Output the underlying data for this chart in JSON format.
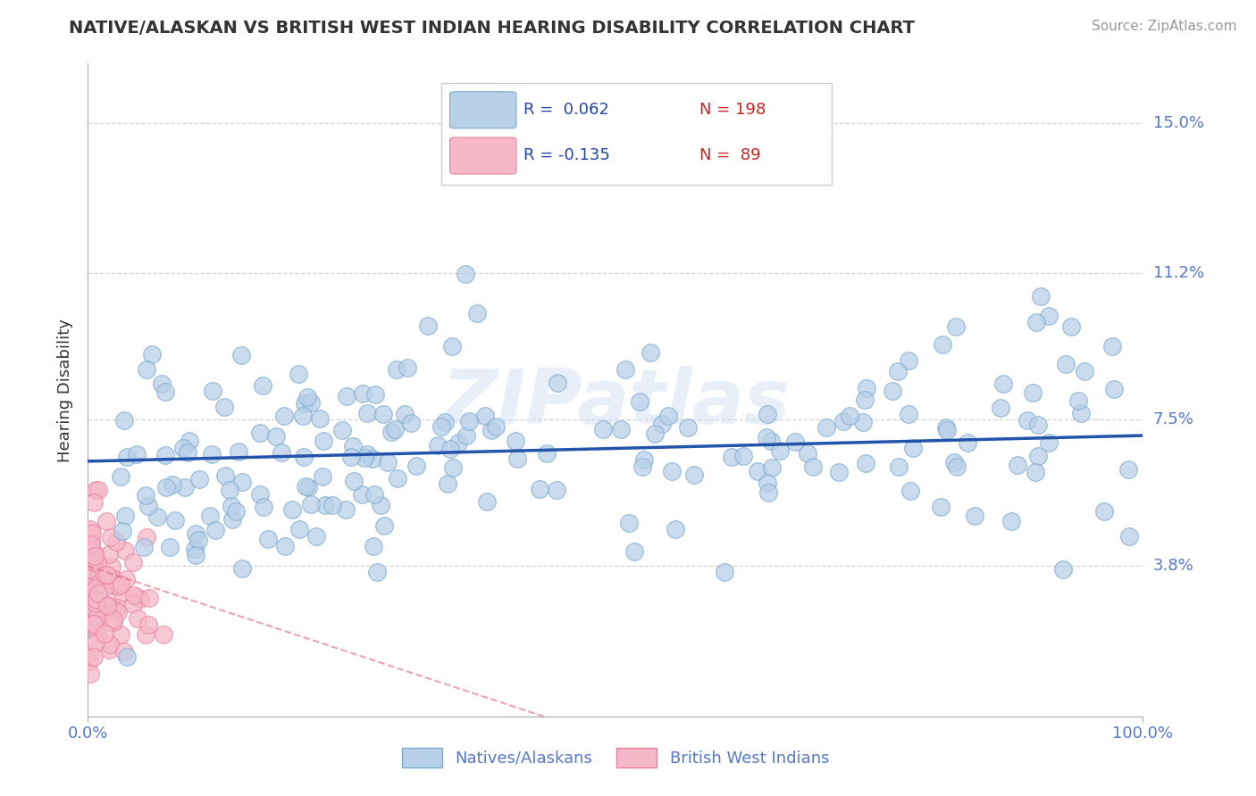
{
  "title": "NATIVE/ALASKAN VS BRITISH WEST INDIAN HEARING DISABILITY CORRELATION CHART",
  "source": "Source: ZipAtlas.com",
  "ylabel": "Hearing Disability",
  "xlim": [
    0.0,
    100.0
  ],
  "ylim": [
    0.0,
    16.5
  ],
  "yticks": [
    3.8,
    7.5,
    11.2,
    15.0
  ],
  "ytick_labels": [
    "3.8%",
    "7.5%",
    "11.2%",
    "15.0%"
  ],
  "xtick_labels": [
    "0.0%",
    "100.0%"
  ],
  "blue_color": "#b8d0e8",
  "blue_edge_color": "#7aaad0",
  "pink_color": "#f5b8c8",
  "pink_edge_color": "#e880a0",
  "blue_line_color": "#2255aa",
  "pink_line_color": "#e06878",
  "blue_r": 0.062,
  "pink_r": -0.135,
  "blue_n": 198,
  "pink_n": 89,
  "background_color": "#ffffff",
  "grid_color": "#c8c8c8",
  "watermark": "ZIPatlas",
  "title_color": "#333333",
  "source_color": "#999999",
  "ylabel_color": "#333333",
  "tick_color": "#5577cc",
  "legend_text_color": "#2244aa",
  "legend_n_color": "#cc2222",
  "legend_r_color": "#2244aa"
}
